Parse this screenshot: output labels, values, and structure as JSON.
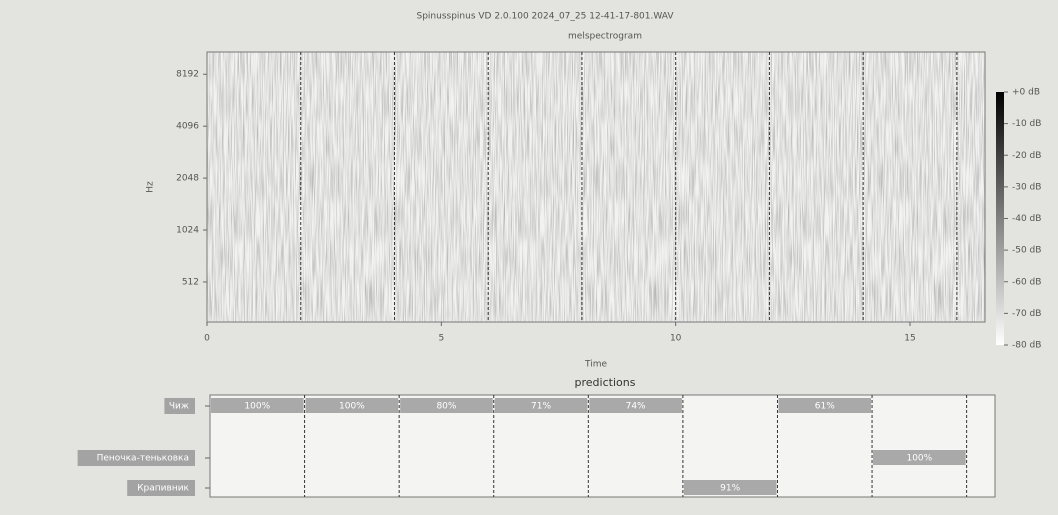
{
  "chart_data": [
    {
      "type": "spectrogram",
      "title": "Spinusspinus VD 2.0.100 2024_07_25 12-41-17-801.WAV",
      "subtitle": "melspectrogram",
      "xlabel": "Time",
      "ylabel": "Hz",
      "xlim": [
        0,
        16.6
      ],
      "xticks": [
        0,
        5,
        10,
        15
      ],
      "ylim": [
        300,
        11025
      ],
      "yscale": "log",
      "yticks": [
        512,
        1024,
        2048,
        4096,
        8192
      ],
      "colorbar": {
        "lim": [
          -80,
          0
        ],
        "ticks": [
          {
            "value": 0,
            "label": "+0 dB"
          },
          {
            "value": -10,
            "label": "-10 dB"
          },
          {
            "value": -20,
            "label": "-20 dB"
          },
          {
            "value": -30,
            "label": "-30 dB"
          },
          {
            "value": -40,
            "label": "-40 dB"
          },
          {
            "value": -50,
            "label": "-50 dB"
          },
          {
            "value": -60,
            "label": "-60 dB"
          },
          {
            "value": -70,
            "label": "-70 dB"
          },
          {
            "value": -80,
            "label": "-80 dB"
          }
        ]
      }
    },
    {
      "type": "timeline",
      "title": "predictions",
      "categories": [
        "Чиж",
        "Пеночка-теньковка",
        "Крапивник"
      ],
      "xlim": [
        0,
        16.6
      ],
      "color": "#a9a9a9",
      "segments": [
        {
          "start": 0,
          "end": 2,
          "row": 0,
          "value": 100,
          "value_label": "100%"
        },
        {
          "start": 2,
          "end": 4,
          "row": 0,
          "value": 100,
          "value_label": "100%"
        },
        {
          "start": 4,
          "end": 6,
          "row": 0,
          "value": 80,
          "value_label": "80%"
        },
        {
          "start": 6,
          "end": 8,
          "row": 0,
          "value": 71,
          "value_label": "71%"
        },
        {
          "start": 8,
          "end": 10,
          "row": 0,
          "value": 74,
          "value_label": "74%"
        },
        {
          "start": 10,
          "end": 12,
          "row": 2,
          "value": 91,
          "value_label": "91%"
        },
        {
          "start": 12,
          "end": 14,
          "row": 0,
          "value": 61,
          "value_label": "61%"
        },
        {
          "start": 14,
          "end": 16,
          "row": 1,
          "value": 100,
          "value_label": "100%"
        },
        {
          "start": 16,
          "end": 16.6
        }
      ]
    }
  ]
}
